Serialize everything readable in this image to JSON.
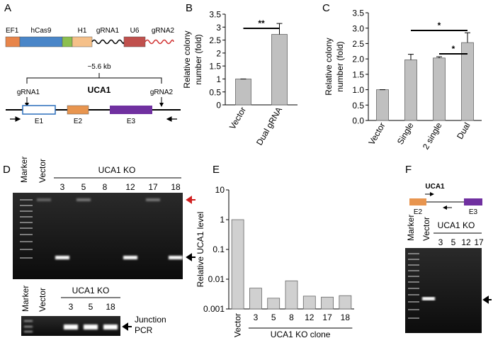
{
  "panel_labels": [
    "A",
    "B",
    "C",
    "D",
    "E",
    "F"
  ],
  "construct": {
    "elements": [
      "EF1",
      "hCas9",
      "H1",
      "gRNA1",
      "U6",
      "gRNA2"
    ]
  },
  "locus": {
    "size": "~5.6 kb",
    "gene": "UCA1",
    "guides": [
      "gRNA1",
      "gRNA2"
    ],
    "exons": [
      "E1",
      "E2",
      "E3"
    ]
  },
  "gel_d": {
    "lanes": [
      "Marker",
      "Vector"
    ],
    "group": "UCA1 KO",
    "clones": [
      "3",
      "5",
      "8",
      "12",
      "17",
      "18"
    ]
  },
  "gel_d2": {
    "lanes": [
      "Marker",
      "Vector"
    ],
    "group": "UCA1 KO",
    "clones": [
      "3",
      "5",
      "18"
    ],
    "label": [
      "Junction",
      "PCR"
    ]
  },
  "gel_f": {
    "gene": "UCA1",
    "exons": [
      "E2",
      "E3"
    ],
    "lanes": [
      "Marker",
      "Vector"
    ],
    "group": "UCA1 KO",
    "clones": [
      "3",
      "5",
      "12",
      "17"
    ]
  },
  "chart_data": [
    {
      "type": "bar",
      "ylabel": [
        "Relative colony",
        "number (fold)"
      ],
      "categories": [
        "Vector",
        "Dual gRNA"
      ],
      "values": [
        1,
        2.72
      ],
      "errors": [
        0,
        0.42
      ],
      "color": "#c0c0c0",
      "ylim": [
        0,
        3.5
      ],
      "yticks": [
        0,
        0.5,
        1,
        1.5,
        2,
        2.5,
        3,
        3.5
      ],
      "annotations": [
        "**"
      ]
    },
    {
      "type": "bar",
      "ylabel": [
        "Relative colony",
        "number (fold)"
      ],
      "categories": [
        "Vector",
        "Single",
        "2 single",
        "Dual"
      ],
      "values": [
        1,
        1.97,
        2.03,
        2.53
      ],
      "errors": [
        0,
        0.18,
        0.04,
        0.32
      ],
      "color": "#c0c0c0",
      "ylim": [
        0,
        3.5
      ],
      "yticks": [
        {
          "value": 0,
          "label": "0.0"
        },
        {
          "value": 0.5,
          "label": "0.5"
        },
        {
          "value": 1,
          "label": "1.0"
        },
        {
          "value": 1.5,
          "label": "1.5"
        },
        {
          "value": 2,
          "label": "2.0"
        },
        {
          "value": 2.5,
          "label": "2.5"
        },
        {
          "value": 3,
          "label": "3.0"
        },
        {
          "value": 3.5,
          "label": "3.5"
        }
      ],
      "annotations": [
        "*",
        "*"
      ]
    },
    {
      "type": "bar",
      "log": true,
      "ylabel": [
        "Relative UCA1 level"
      ],
      "xlabel": "UCA1 KO clone",
      "categories": [
        "Vector",
        "3",
        "5",
        "8",
        "12",
        "17",
        "18"
      ],
      "values": [
        1,
        0.005,
        0.0023,
        0.0088,
        0.0027,
        0.0025,
        0.0028
      ],
      "color": "#d0d0d0",
      "ylim": [
        0.001,
        10
      ],
      "yticks": [
        0.001,
        0.01,
        0.1,
        1,
        10
      ]
    }
  ]
}
